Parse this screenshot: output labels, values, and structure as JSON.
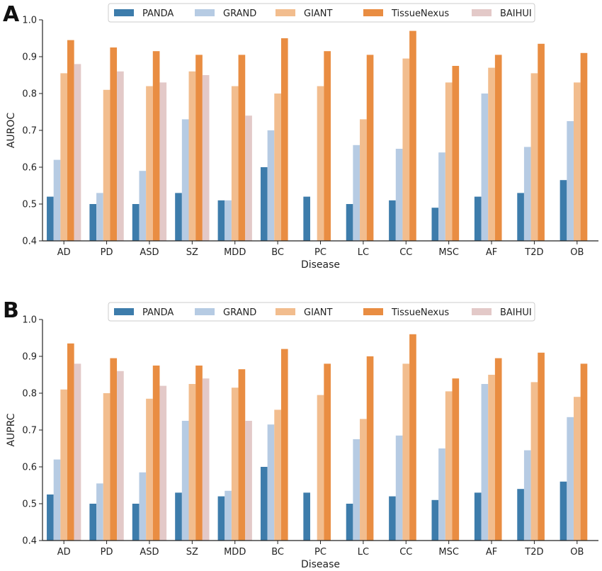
{
  "chart_data": [
    {
      "type": "bar",
      "panel_label": "A",
      "xlabel": "Disease",
      "ylabel": "AUROC",
      "ylim": [
        0.4,
        1.0
      ],
      "yticks": [
        "0.4",
        "0.5",
        "0.6",
        "0.7",
        "0.8",
        "0.9",
        "1.0"
      ],
      "categories": [
        "AD",
        "PD",
        "ASD",
        "SZ",
        "MDD",
        "BC",
        "PC",
        "LC",
        "CC",
        "MSC",
        "AF",
        "T2D",
        "OB"
      ],
      "legend_position": "top-center",
      "grid": false,
      "series": [
        {
          "name": "PANDA",
          "color": "#3d7cab",
          "values": [
            0.52,
            0.5,
            0.5,
            0.53,
            0.51,
            0.6,
            0.52,
            0.5,
            0.51,
            0.49,
            0.52,
            0.53,
            0.565
          ]
        },
        {
          "name": "GRAND",
          "color": "#b6cbe3",
          "values": [
            0.62,
            0.53,
            0.59,
            0.73,
            0.51,
            0.7,
            null,
            0.66,
            0.65,
            0.64,
            0.8,
            0.655,
            0.725
          ]
        },
        {
          "name": "GIANT",
          "color": "#f2bd8e",
          "values": [
            0.855,
            0.81,
            0.82,
            0.86,
            0.82,
            0.8,
            0.82,
            0.73,
            0.895,
            0.83,
            0.87,
            0.855,
            0.83
          ]
        },
        {
          "name": "TissueNexus",
          "color": "#e98d42",
          "values": [
            0.945,
            0.925,
            0.915,
            0.905,
            0.905,
            0.95,
            0.915,
            0.905,
            0.97,
            0.875,
            0.905,
            0.935,
            0.91
          ]
        },
        {
          "name": "BAIHUI",
          "color": "#e3c9c8",
          "values": [
            0.88,
            0.86,
            0.83,
            0.85,
            0.74,
            null,
            null,
            null,
            null,
            null,
            null,
            null,
            null
          ]
        }
      ]
    },
    {
      "type": "bar",
      "panel_label": "B",
      "xlabel": "Disease",
      "ylabel": "AUPRC",
      "ylim": [
        0.4,
        1.0
      ],
      "yticks": [
        "0.4",
        "0.5",
        "0.6",
        "0.7",
        "0.8",
        "0.9",
        "1.0"
      ],
      "categories": [
        "AD",
        "PD",
        "ASD",
        "SZ",
        "MDD",
        "BC",
        "PC",
        "LC",
        "CC",
        "MSC",
        "AF",
        "T2D",
        "OB"
      ],
      "legend_position": "top-center",
      "grid": false,
      "series": [
        {
          "name": "PANDA",
          "color": "#3d7cab",
          "values": [
            0.525,
            0.5,
            0.5,
            0.53,
            0.52,
            0.6,
            0.53,
            0.5,
            0.52,
            0.51,
            0.53,
            0.54,
            0.56
          ]
        },
        {
          "name": "GRAND",
          "color": "#b6cbe3",
          "values": [
            0.62,
            0.555,
            0.585,
            0.725,
            0.535,
            0.715,
            null,
            0.675,
            0.685,
            0.65,
            0.825,
            0.645,
            0.735
          ]
        },
        {
          "name": "GIANT",
          "color": "#f2bd8e",
          "values": [
            0.81,
            0.8,
            0.785,
            0.825,
            0.815,
            0.755,
            0.795,
            0.73,
            0.88,
            0.805,
            0.85,
            0.83,
            0.79
          ]
        },
        {
          "name": "TissueNexus",
          "color": "#e98d42",
          "values": [
            0.935,
            0.895,
            0.875,
            0.875,
            0.865,
            0.92,
            0.88,
            0.9,
            0.96,
            0.84,
            0.895,
            0.91,
            0.88
          ]
        },
        {
          "name": "BAIHUI",
          "color": "#e3c9c8",
          "values": [
            0.88,
            0.86,
            0.82,
            0.84,
            0.725,
            null,
            null,
            null,
            null,
            null,
            null,
            null,
            null
          ]
        }
      ]
    }
  ]
}
